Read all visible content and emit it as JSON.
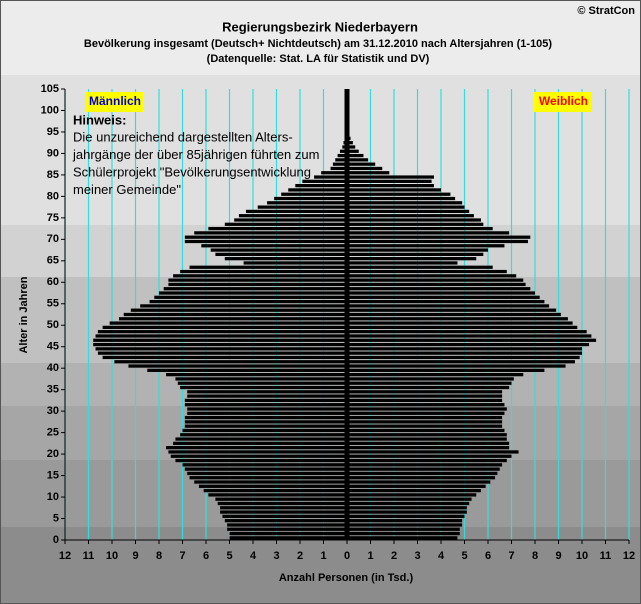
{
  "chart_data": {
    "type": "population-pyramid",
    "copyright": "© StratCon",
    "title": "Regierungsbezirk Niederbayern",
    "subtitle": "Bevölkerung  insgesamt (Deutsch+ Nichtdeutsch) am 31.12.2010 nach Altersjahren (1-105)",
    "source": "(Datenquelle: Stat. LA für Statistik und DV)",
    "y_label": "Alter in Jahren",
    "x_label": "Anzahl Personen (in Tsd.)",
    "annotation": {
      "title": "Hinweis:",
      "lines": [
        "Die unzureichend dargestellten Alters-",
        "jahrgänge der über 85jährigen führten zum",
        "Schülerprojekt \"Bevölkerungsentwicklung",
        "meiner Gemeinde\""
      ]
    },
    "y": [
      0,
      1,
      2,
      3,
      4,
      5,
      6,
      7,
      8,
      9,
      10,
      11,
      12,
      13,
      14,
      15,
      16,
      17,
      18,
      19,
      20,
      21,
      22,
      23,
      24,
      25,
      26,
      27,
      28,
      29,
      30,
      31,
      32,
      33,
      34,
      35,
      36,
      37,
      38,
      39,
      40,
      41,
      42,
      43,
      44,
      45,
      46,
      47,
      48,
      49,
      50,
      51,
      52,
      53,
      54,
      55,
      56,
      57,
      58,
      59,
      60,
      61,
      62,
      63,
      64,
      65,
      66,
      67,
      68,
      69,
      70,
      71,
      72,
      73,
      74,
      75,
      76,
      77,
      78,
      79,
      80,
      81,
      82,
      83,
      84,
      85,
      86,
      87,
      88,
      89,
      90,
      91,
      92,
      93,
      94,
      95,
      96,
      97,
      98,
      99,
      100,
      101,
      102,
      103,
      104,
      105
    ],
    "ylim": [
      0,
      105
    ],
    "yticks": [
      0,
      5,
      10,
      15,
      20,
      25,
      30,
      35,
      40,
      45,
      50,
      55,
      60,
      65,
      70,
      75,
      80,
      85,
      90,
      95,
      100,
      105
    ],
    "xlim": [
      -12,
      12
    ],
    "xticks": [
      {
        "value": -12,
        "label": "12"
      },
      {
        "value": -11,
        "label": "11"
      },
      {
        "value": -10,
        "label": "10"
      },
      {
        "value": -9,
        "label": "9"
      },
      {
        "value": -8,
        "label": "8"
      },
      {
        "value": -7,
        "label": "7"
      },
      {
        "value": -6,
        "label": "6"
      },
      {
        "value": -5,
        "label": "5"
      },
      {
        "value": -4,
        "label": "4"
      },
      {
        "value": -3,
        "label": "3"
      },
      {
        "value": -2,
        "label": "2"
      },
      {
        "value": -1,
        "label": "1"
      },
      0,
      1,
      2,
      3,
      4,
      5,
      6,
      7,
      8,
      9,
      10,
      11,
      12
    ],
    "grid_color": "#33dddd",
    "legend_background": "#ffff00",
    "series": [
      {
        "name": "Männlich",
        "color": "#000000",
        "label_color": "#0000cc",
        "values": [
          5.0,
          5.0,
          5.1,
          5.1,
          5.2,
          5.3,
          5.4,
          5.4,
          5.5,
          5.6,
          5.9,
          6.1,
          6.3,
          6.5,
          6.7,
          6.8,
          6.9,
          7.0,
          7.3,
          7.5,
          7.6,
          7.7,
          7.4,
          7.3,
          7.1,
          7.0,
          6.9,
          6.9,
          6.9,
          6.8,
          6.8,
          6.9,
          6.9,
          6.8,
          6.8,
          7.1,
          7.2,
          7.3,
          7.7,
          8.5,
          9.3,
          9.9,
          10.4,
          10.6,
          10.7,
          10.8,
          10.8,
          10.7,
          10.6,
          10.4,
          10.1,
          9.7,
          9.5,
          9.2,
          8.8,
          8.4,
          8.2,
          8.0,
          7.8,
          7.6,
          7.6,
          7.4,
          7.1,
          6.7,
          4.4,
          5.2,
          5.6,
          5.8,
          6.2,
          6.9,
          6.9,
          6.5,
          5.9,
          5.2,
          4.8,
          4.6,
          4.3,
          3.8,
          3.4,
          3.1,
          2.8,
          2.5,
          2.2,
          1.9,
          1.4,
          1.1,
          0.7,
          0.6,
          0.5,
          0.4,
          0.3,
          0.2,
          0.15,
          0.1,
          0.08,
          0.05,
          0.03,
          0.02,
          0.01,
          0.01,
          0,
          0,
          0,
          0,
          0,
          0
        ]
      },
      {
        "name": "Weiblich",
        "color": "#000000",
        "label_color": "#ff0000",
        "values": [
          4.7,
          4.8,
          4.8,
          4.9,
          4.9,
          5.0,
          5.1,
          5.1,
          5.2,
          5.3,
          5.5,
          5.7,
          5.9,
          6.1,
          6.3,
          6.4,
          6.5,
          6.6,
          6.8,
          7.0,
          7.3,
          6.9,
          6.9,
          6.8,
          6.8,
          6.7,
          6.6,
          6.6,
          6.6,
          6.7,
          6.8,
          6.7,
          6.6,
          6.6,
          6.6,
          6.9,
          7.0,
          7.1,
          7.5,
          8.4,
          9.3,
          9.7,
          9.9,
          10.0,
          10.0,
          10.3,
          10.6,
          10.4,
          10.2,
          9.8,
          9.6,
          9.4,
          9.1,
          8.9,
          8.6,
          8.4,
          8.2,
          8.0,
          7.8,
          7.6,
          7.5,
          7.2,
          6.8,
          6.2,
          4.7,
          5.5,
          5.8,
          6.0,
          6.7,
          7.7,
          7.8,
          6.9,
          6.2,
          5.8,
          5.7,
          5.4,
          5.2,
          5.0,
          4.9,
          4.6,
          4.4,
          4.0,
          3.7,
          3.6,
          3.7,
          1.8,
          1.5,
          1.2,
          0.9,
          0.7,
          0.5,
          0.35,
          0.25,
          0.15,
          0.1,
          0.05,
          0.03,
          0.02,
          0.01,
          0.01,
          0,
          0,
          0,
          0,
          0,
          0
        ]
      }
    ]
  }
}
